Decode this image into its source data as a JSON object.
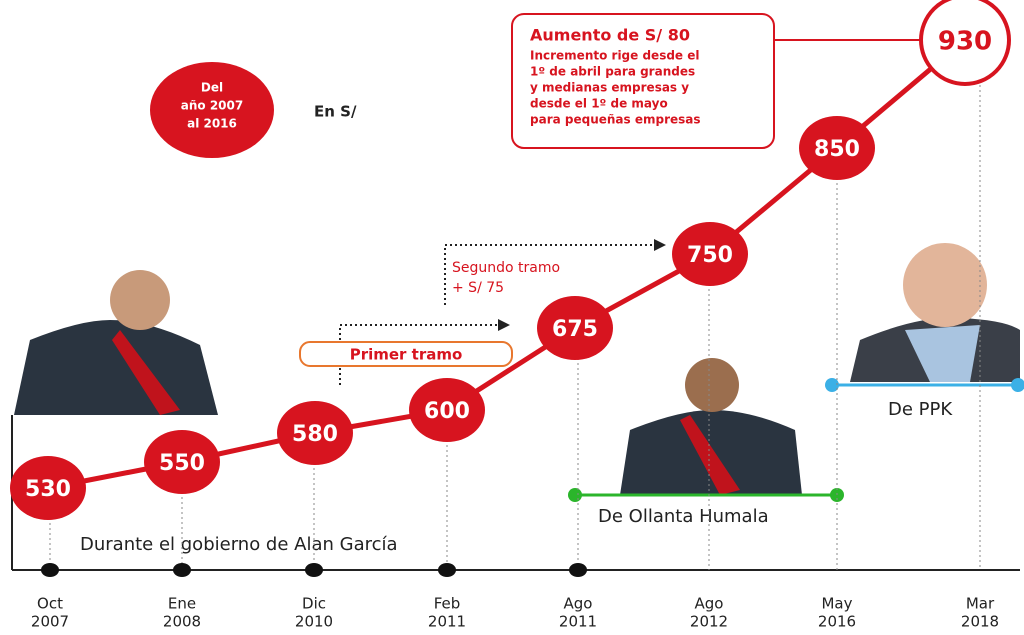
{
  "badge": [
    "Del",
    "año 2007",
    "al 2016"
  ],
  "unit": "En S/",
  "timeline": [
    {
      "month": "Oct",
      "year": "2007",
      "value": 530
    },
    {
      "month": "Ene",
      "year": "2008",
      "value": 550
    },
    {
      "month": "Dic",
      "year": "2010",
      "value": 580
    },
    {
      "month": "Feb",
      "year": "2011",
      "value": 600
    },
    {
      "month": "Ago",
      "year": "2011",
      "value": 675
    },
    {
      "month": "Ago",
      "year": "2012",
      "value": 750
    },
    {
      "month": "May",
      "year": "2016",
      "value": 850
    },
    {
      "month": "Mar",
      "year": "2018",
      "value": 930
    }
  ],
  "increase": {
    "title": "Aumento de S/ 80",
    "lines": [
      "Incremento rige desde el",
      "1º de abril para grandes",
      "y medianas empresas y",
      "desde el 1º de mayo",
      "para pequeñas empresas"
    ]
  },
  "first_step": "Primer tramo",
  "second_step": [
    "Segundo tramo",
    "+ S/ 75"
  ],
  "periods": [
    "Durante el gobierno de Alan García",
    "De Ollanta Humala",
    "De PPK"
  ]
}
